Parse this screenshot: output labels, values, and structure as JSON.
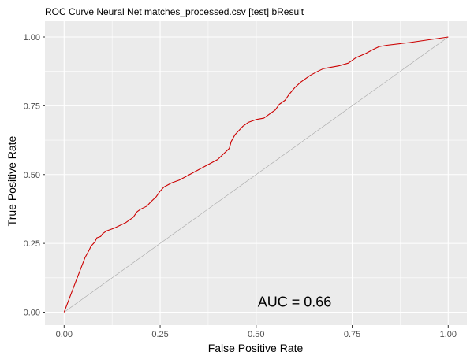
{
  "chart_data": {
    "type": "line",
    "title": "ROC Curve Neural Net matches_processed.csv [test] bResult",
    "xlabel": "False Positive Rate",
    "ylabel": "True Positive Rate",
    "xlim": [
      0,
      1
    ],
    "ylim": [
      0,
      1
    ],
    "x_ticks": [
      "0.00",
      "0.25",
      "0.50",
      "0.75",
      "1.00"
    ],
    "y_ticks": [
      "0.00",
      "0.25",
      "0.50",
      "0.75",
      "1.00"
    ],
    "grid": true,
    "background": "#ebebeb",
    "grid_color": "#ffffff",
    "annotation": {
      "text": "AUC = 0.66",
      "x": 0.6,
      "y": 0.02
    },
    "series": [
      {
        "color": "#cc0000",
        "points": [
          [
            0.0,
            0.0
          ],
          [
            0.03,
            0.11
          ],
          [
            0.055,
            0.2
          ],
          [
            0.065,
            0.225
          ],
          [
            0.07,
            0.24
          ],
          [
            0.08,
            0.255
          ],
          [
            0.085,
            0.27
          ],
          [
            0.095,
            0.275
          ],
          [
            0.1,
            0.285
          ],
          [
            0.11,
            0.295
          ],
          [
            0.13,
            0.305
          ],
          [
            0.145,
            0.315
          ],
          [
            0.16,
            0.325
          ],
          [
            0.17,
            0.335
          ],
          [
            0.18,
            0.345
          ],
          [
            0.19,
            0.365
          ],
          [
            0.2,
            0.375
          ],
          [
            0.215,
            0.385
          ],
          [
            0.225,
            0.4
          ],
          [
            0.24,
            0.42
          ],
          [
            0.25,
            0.44
          ],
          [
            0.26,
            0.455
          ],
          [
            0.28,
            0.47
          ],
          [
            0.3,
            0.48
          ],
          [
            0.32,
            0.495
          ],
          [
            0.34,
            0.51
          ],
          [
            0.36,
            0.525
          ],
          [
            0.38,
            0.54
          ],
          [
            0.4,
            0.555
          ],
          [
            0.415,
            0.575
          ],
          [
            0.43,
            0.595
          ],
          [
            0.435,
            0.62
          ],
          [
            0.445,
            0.645
          ],
          [
            0.455,
            0.66
          ],
          [
            0.465,
            0.675
          ],
          [
            0.48,
            0.69
          ],
          [
            0.5,
            0.7
          ],
          [
            0.52,
            0.705
          ],
          [
            0.535,
            0.72
          ],
          [
            0.55,
            0.735
          ],
          [
            0.56,
            0.755
          ],
          [
            0.575,
            0.77
          ],
          [
            0.585,
            0.79
          ],
          [
            0.6,
            0.815
          ],
          [
            0.615,
            0.835
          ],
          [
            0.625,
            0.845
          ],
          [
            0.64,
            0.86
          ],
          [
            0.66,
            0.875
          ],
          [
            0.675,
            0.885
          ],
          [
            0.695,
            0.89
          ],
          [
            0.715,
            0.895
          ],
          [
            0.74,
            0.905
          ],
          [
            0.76,
            0.925
          ],
          [
            0.785,
            0.94
          ],
          [
            0.805,
            0.955
          ],
          [
            0.82,
            0.965
          ],
          [
            0.84,
            0.97
          ],
          [
            0.9,
            0.98
          ],
          [
            1.0,
            1.0
          ]
        ]
      },
      {
        "color": "#a6a6a6",
        "points": [
          [
            0,
            0
          ],
          [
            1,
            1
          ]
        ]
      }
    ]
  }
}
